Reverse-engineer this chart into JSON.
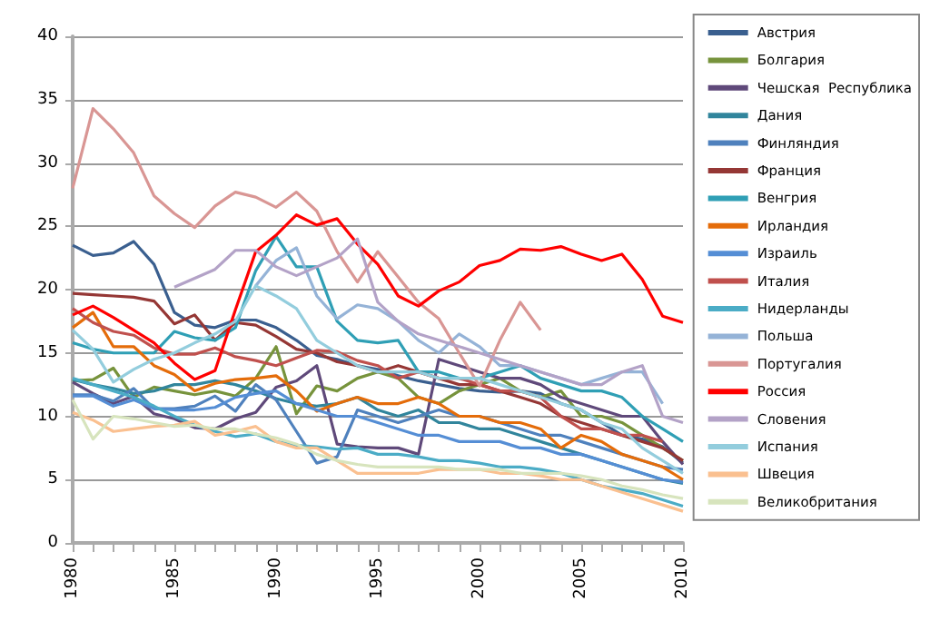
{
  "chart_data": {
    "type": "line",
    "x": [
      1980,
      1981,
      1982,
      1983,
      1984,
      1985,
      1986,
      1987,
      1988,
      1989,
      1990,
      1991,
      1992,
      1993,
      1994,
      1995,
      1996,
      1997,
      1998,
      1999,
      2000,
      2001,
      2002,
      2003,
      2004,
      2005,
      2006,
      2007,
      2008,
      2009,
      2010
    ],
    "xlim": [
      1980,
      2010
    ],
    "xticks": [
      1980,
      1985,
      1990,
      1995,
      2000,
      2005,
      2010
    ],
    "ylim": [
      0,
      40
    ],
    "yticks": [
      0,
      5,
      10,
      15,
      20,
      25,
      30,
      35,
      40
    ],
    "grid": "y",
    "legend": "right",
    "marker": "none",
    "line_style": "solid",
    "series": [
      {
        "name": "Австрия",
        "color": "#3a5f8f",
        "values": [
          23.5,
          22.7,
          22.9,
          23.8,
          22.0,
          18.2,
          17.2,
          17.0,
          17.6,
          17.6,
          17.0,
          16.0,
          14.8,
          14.5,
          14.0,
          13.7,
          13.2,
          12.8,
          12.5,
          12.2,
          12.0,
          11.9,
          12.0,
          11.8,
          11.0,
          10.5,
          9.5,
          8.5,
          8.2,
          7.6,
          6.3
        ]
      },
      {
        "name": "Болгария",
        "color": "#77933c",
        "values": [
          12.8,
          12.9,
          13.8,
          11.5,
          12.3,
          12.0,
          11.7,
          12.0,
          11.6,
          13.0,
          15.5,
          10.2,
          12.4,
          12.0,
          13.0,
          13.5,
          13.0,
          11.5,
          11.0,
          12.0,
          12.5,
          13.0,
          12.0,
          11.5,
          12.0,
          10.0,
          10.0,
          9.5,
          8.5,
          7.5,
          6.5
        ]
      },
      {
        "name": "Чешская  Республика",
        "color": "#5f497a",
        "values": [
          12.7,
          11.8,
          11.0,
          11.6,
          10.2,
          9.8,
          9.1,
          9.0,
          9.8,
          10.3,
          12.3,
          12.8,
          14.0,
          7.8,
          7.6,
          7.5,
          7.5,
          7.0,
          14.5,
          14.0,
          13.5,
          13.0,
          13.0,
          12.5,
          11.5,
          11.0,
          10.5,
          10.0,
          10.0,
          8.0,
          6.2
        ]
      },
      {
        "name": "Дания",
        "color": "#31859c",
        "values": [
          12.9,
          12.5,
          12.2,
          11.8,
          12.0,
          12.5,
          12.5,
          12.8,
          12.5,
          12.0,
          11.4,
          11.0,
          10.8,
          11.0,
          11.5,
          10.5,
          10.0,
          10.5,
          9.5,
          9.5,
          9.0,
          9.0,
          8.5,
          8.0,
          7.5,
          7.0,
          6.5,
          6.0,
          5.5,
          5.0,
          4.7
        ]
      },
      {
        "name": "Финляндия",
        "color": "#4f81bd",
        "values": [
          11.7,
          11.7,
          11.2,
          12.2,
          10.6,
          10.6,
          10.8,
          11.6,
          10.4,
          12.5,
          11.3,
          8.8,
          6.3,
          6.8,
          10.5,
          10.0,
          9.5,
          10.0,
          10.5,
          10.0,
          10.0,
          9.5,
          9.0,
          8.5,
          8.5,
          8.0,
          7.5,
          7.0,
          6.5,
          6.0,
          5.8
        ]
      },
      {
        "name": "Франция",
        "color": "#953735",
        "values": [
          19.7,
          19.6,
          19.5,
          19.4,
          19.1,
          17.3,
          18.0,
          16.0,
          17.4,
          17.2,
          16.3,
          15.3,
          15.0,
          14.3,
          14.0,
          13.5,
          14.0,
          13.5,
          13.0,
          12.5,
          12.5,
          12.0,
          11.5,
          11.0,
          10.0,
          9.5,
          9.0,
          8.5,
          8.0,
          7.5,
          6.5
        ]
      },
      {
        "name": "Венгрия",
        "color": "#2f9fb5",
        "values": [
          15.8,
          15.3,
          15.0,
          15.0,
          15.0,
          16.7,
          16.2,
          16.0,
          17.0,
          21.5,
          24.2,
          21.8,
          21.8,
          17.5,
          16.0,
          15.8,
          16.0,
          13.5,
          13.5,
          13.0,
          13.0,
          13.5,
          14.0,
          13.0,
          12.5,
          12.0,
          12.0,
          11.5,
          10.0,
          9.0,
          8.0
        ]
      },
      {
        "name": "Ирландия",
        "color": "#e46c0a",
        "values": [
          17.0,
          18.2,
          15.5,
          15.5,
          14.0,
          13.3,
          12.0,
          12.6,
          12.9,
          13.0,
          13.2,
          12.0,
          10.4,
          11.0,
          11.5,
          11.0,
          11.0,
          11.5,
          11.0,
          10.0,
          10.0,
          9.5,
          9.5,
          9.0,
          7.5,
          8.5,
          8.0,
          7.0,
          6.5,
          6.0,
          5.0
        ]
      },
      {
        "name": "Израиль",
        "color": "#558ed5",
        "values": [
          11.6,
          11.6,
          10.8,
          11.3,
          10.6,
          10.5,
          10.5,
          10.7,
          11.5,
          11.8,
          12.0,
          11.0,
          10.5,
          10.0,
          10.0,
          9.5,
          9.0,
          8.5,
          8.5,
          8.0,
          8.0,
          8.0,
          7.5,
          7.5,
          7.0,
          7.0,
          6.5,
          6.0,
          5.5,
          5.0,
          4.8
        ]
      },
      {
        "name": "Италия",
        "color": "#c0504d",
        "values": [
          18.5,
          17.4,
          16.7,
          16.4,
          15.4,
          14.9,
          14.9,
          15.4,
          14.7,
          14.4,
          14.0,
          14.6,
          15.2,
          15.1,
          14.4,
          14.0,
          13.0,
          13.5,
          13.0,
          13.0,
          12.5,
          12.0,
          12.0,
          11.5,
          10.0,
          9.0,
          9.0,
          8.5,
          8.5,
          8.0,
          null
        ]
      },
      {
        "name": "Нидерланды",
        "color": "#4bacc6",
        "values": [
          13.0,
          12.5,
          12.0,
          11.5,
          10.8,
          10.0,
          9.3,
          8.8,
          8.4,
          8.6,
          8.0,
          7.7,
          7.6,
          7.4,
          7.5,
          7.0,
          7.0,
          6.8,
          6.5,
          6.5,
          6.3,
          6.0,
          6.0,
          5.8,
          5.5,
          5.0,
          4.5,
          4.2,
          3.9,
          3.4,
          2.9
        ]
      },
      {
        "name": "Польша",
        "color": "#95b3d7",
        "values": [
          null,
          null,
          null,
          null,
          null,
          null,
          null,
          null,
          null,
          20.3,
          22.3,
          23.3,
          19.5,
          17.7,
          18.8,
          18.5,
          17.5,
          16.0,
          15.0,
          16.5,
          15.5,
          14.0,
          14.0,
          13.5,
          13.0,
          12.5,
          13.0,
          13.5,
          13.5,
          11.0,
          null
        ]
      },
      {
        "name": "Португалия",
        "color": "#d99694",
        "values": [
          28.0,
          34.3,
          32.7,
          30.8,
          27.4,
          26.0,
          24.9,
          26.6,
          27.7,
          27.3,
          26.5,
          27.7,
          26.2,
          23.0,
          20.6,
          23.0,
          21.0,
          19.0,
          17.7,
          15.0,
          12.4,
          16.0,
          19.0,
          16.8,
          null,
          null,
          null,
          null,
          null,
          null,
          null
        ]
      },
      {
        "name": "Россия",
        "color": "#ff0000",
        "values": [
          18.0,
          18.7,
          17.8,
          16.8,
          15.8,
          14.2,
          12.9,
          13.6,
          18.4,
          23.0,
          24.3,
          25.9,
          25.1,
          25.6,
          23.6,
          22.0,
          19.5,
          18.7,
          19.9,
          20.6,
          21.9,
          22.3,
          23.2,
          23.1,
          23.4,
          22.8,
          22.3,
          22.8,
          20.8,
          17.9,
          17.4
        ]
      },
      {
        "name": "Словения",
        "color": "#b3a2c7",
        "values": [
          null,
          null,
          null,
          null,
          null,
          20.2,
          20.9,
          21.6,
          23.1,
          23.1,
          21.8,
          21.1,
          21.8,
          22.5,
          24.0,
          19.0,
          17.5,
          16.5,
          16.0,
          15.5,
          15.0,
          14.5,
          14.0,
          13.5,
          13.0,
          12.5,
          12.5,
          13.5,
          14.0,
          10.0,
          9.5
        ]
      },
      {
        "name": "Испания",
        "color": "#93cddd",
        "values": [
          16.8,
          15.3,
          12.7,
          13.7,
          14.5,
          15.0,
          15.8,
          16.5,
          17.5,
          20.3,
          19.5,
          18.5,
          16.0,
          15.0,
          14.0,
          13.5,
          13.5,
          13.5,
          13.0,
          13.0,
          13.0,
          12.5,
          12.0,
          11.5,
          11.0,
          10.5,
          9.5,
          9.0,
          7.5,
          6.5,
          5.5
        ]
      },
      {
        "name": "Швеция",
        "color": "#fac090",
        "values": [
          10.3,
          9.7,
          8.8,
          9.0,
          9.2,
          9.3,
          9.6,
          8.5,
          8.8,
          9.2,
          8.0,
          7.5,
          7.5,
          6.5,
          5.5,
          5.5,
          5.5,
          5.5,
          5.8,
          5.8,
          5.8,
          5.5,
          5.5,
          5.3,
          5.0,
          5.0,
          4.5,
          4.0,
          3.5,
          3.0,
          2.5
        ]
      },
      {
        "name": "Великобритания",
        "color": "#d7e4bd",
        "values": [
          11.3,
          8.2,
          10.0,
          9.8,
          9.5,
          9.2,
          9.3,
          9.0,
          9.0,
          8.6,
          8.3,
          7.8,
          7.0,
          6.5,
          6.2,
          6.0,
          6.0,
          6.0,
          6.0,
          5.8,
          5.8,
          5.8,
          5.5,
          5.5,
          5.5,
          5.3,
          5.0,
          4.5,
          4.2,
          3.8,
          3.5
        ]
      }
    ]
  }
}
